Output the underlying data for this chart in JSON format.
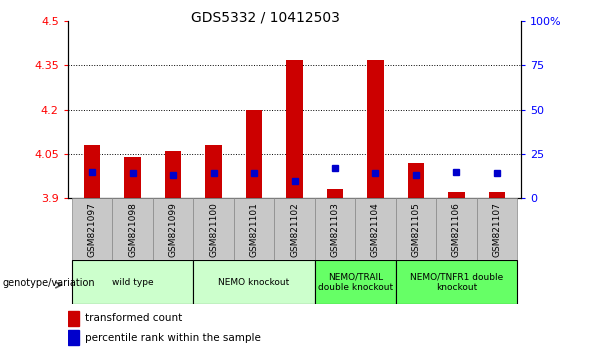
{
  "title": "GDS5332 / 10412503",
  "samples": [
    "GSM821097",
    "GSM821098",
    "GSM821099",
    "GSM821100",
    "GSM821101",
    "GSM821102",
    "GSM821103",
    "GSM821104",
    "GSM821105",
    "GSM821106",
    "GSM821107"
  ],
  "transformed_counts": [
    4.08,
    4.04,
    4.06,
    4.08,
    4.2,
    4.37,
    3.93,
    4.37,
    4.02,
    3.92,
    3.92
  ],
  "percentile_ranks": [
    15,
    14,
    13,
    14,
    14,
    10,
    17,
    14,
    13,
    15,
    14
  ],
  "ylim_left": [
    3.9,
    4.5
  ],
  "ylim_right": [
    0,
    100
  ],
  "yticks_left": [
    3.9,
    4.05,
    4.2,
    4.35,
    4.5
  ],
  "ytick_labels_left": [
    "3.9",
    "4.05",
    "4.2",
    "4.35",
    "4.5"
  ],
  "yticks_right": [
    0,
    25,
    50,
    75,
    100
  ],
  "ytick_labels_right": [
    "0",
    "25",
    "50",
    "75",
    "100%"
  ],
  "bar_color": "#cc0000",
  "dot_color": "#0000cc",
  "base_value": 3.9,
  "group_boundaries": [
    {
      "start": 0,
      "end": 2,
      "label": "wild type",
      "color": "#ccffcc"
    },
    {
      "start": 3,
      "end": 5,
      "label": "NEMO knockout",
      "color": "#ccffcc"
    },
    {
      "start": 6,
      "end": 7,
      "label": "NEMO/TRAIL\ndouble knockout",
      "color": "#66ff66"
    },
    {
      "start": 8,
      "end": 10,
      "label": "NEMO/TNFR1 double\nknockout",
      "color": "#66ff66"
    }
  ],
  "plot_bg_color": "#ffffff",
  "tick_box_color": "#c8c8c8",
  "bar_width": 0.4,
  "dot_size": 5
}
